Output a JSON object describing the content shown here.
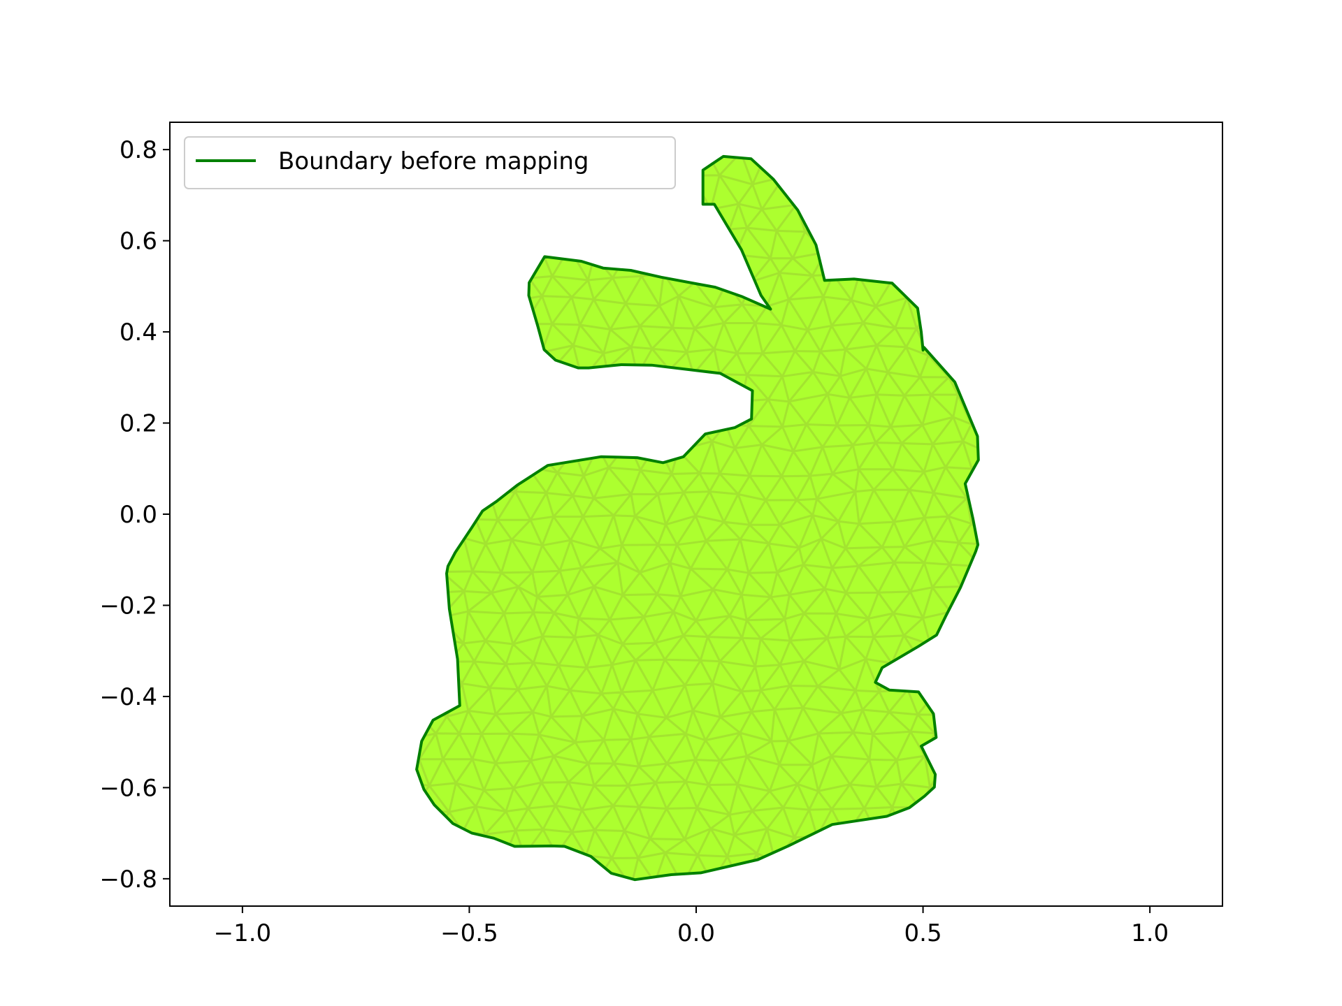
{
  "chart_data": {
    "type": "line",
    "title": "",
    "xlabel": "",
    "ylabel": "",
    "xlim": [
      -1.16,
      1.16
    ],
    "ylim": [
      -0.86,
      0.86
    ],
    "grid": false,
    "legend_position": "top-left",
    "x_ticks": [
      -1.0,
      -0.5,
      0.0,
      0.5,
      1.0
    ],
    "x_tick_labels": [
      "−1.0",
      "−0.5",
      "0.0",
      "0.5",
      "1.0"
    ],
    "y_ticks": [
      0.8,
      0.6,
      0.4,
      0.2,
      0.0,
      -0.2,
      -0.4,
      -0.6,
      -0.8
    ],
    "y_tick_labels": [
      "0.8",
      "0.6",
      "0.4",
      "0.2",
      "0.0",
      "−0.2",
      "−0.4",
      "−0.6",
      "−0.8"
    ],
    "series": [
      {
        "name": "Boundary before mapping",
        "color": "#008000",
        "fill_color": "#ADFF2F",
        "x": [
          0.164,
          0.143,
          0.1,
          0.04,
          0.015,
          0.015,
          0.06,
          0.121,
          0.17,
          0.224,
          0.264,
          0.283,
          0.348,
          0.432,
          0.488,
          0.496,
          0.5,
          0.502,
          0.57,
          0.62,
          0.622,
          0.593,
          0.61,
          0.621,
          0.616,
          0.583,
          0.55,
          0.53,
          0.49,
          0.41,
          0.395,
          0.426,
          0.49,
          0.523,
          0.529,
          0.496,
          0.527,
          0.525,
          0.503,
          0.47,
          0.42,
          0.3,
          0.203,
          0.136,
          0.01,
          -0.055,
          -0.135,
          -0.187,
          -0.232,
          -0.29,
          -0.318,
          -0.4,
          -0.446,
          -0.494,
          -0.536,
          -0.577,
          -0.6,
          -0.616,
          -0.605,
          -0.58,
          -0.521,
          -0.526,
          -0.544,
          -0.55,
          -0.547,
          -0.531,
          -0.495,
          -0.471,
          -0.44,
          -0.394,
          -0.327,
          -0.21,
          -0.13,
          -0.073,
          -0.028,
          0.02,
          0.085,
          0.122,
          0.124,
          0.053,
          -0.098,
          -0.165,
          -0.237,
          -0.26,
          -0.31,
          -0.335,
          -0.349,
          -0.369,
          -0.368,
          -0.334,
          -0.253,
          -0.205,
          -0.144,
          -0.077,
          0.004,
          0.042,
          0.102
        ],
        "y": [
          0.45,
          0.48,
          0.58,
          0.68,
          0.68,
          0.755,
          0.785,
          0.78,
          0.735,
          0.667,
          0.591,
          0.513,
          0.516,
          0.507,
          0.452,
          0.4,
          0.36,
          0.366,
          0.29,
          0.171,
          0.119,
          0.067,
          -0.01,
          -0.067,
          -0.082,
          -0.16,
          -0.224,
          -0.265,
          -0.29,
          -0.337,
          -0.369,
          -0.386,
          -0.39,
          -0.438,
          -0.49,
          -0.509,
          -0.571,
          -0.599,
          -0.619,
          -0.644,
          -0.663,
          -0.681,
          -0.728,
          -0.758,
          -0.787,
          -0.791,
          -0.802,
          -0.788,
          -0.751,
          -0.729,
          -0.728,
          -0.729,
          -0.711,
          -0.7,
          -0.679,
          -0.638,
          -0.604,
          -0.56,
          -0.498,
          -0.452,
          -0.42,
          -0.318,
          -0.208,
          -0.13,
          -0.114,
          -0.084,
          -0.03,
          0.007,
          0.028,
          0.064,
          0.107,
          0.126,
          0.124,
          0.113,
          0.126,
          0.176,
          0.19,
          0.209,
          0.271,
          0.309,
          0.327,
          0.328,
          0.321,
          0.321,
          0.338,
          0.361,
          0.412,
          0.48,
          0.508,
          0.565,
          0.555,
          0.54,
          0.535,
          0.52,
          0.505,
          0.498,
          0.477
        ]
      }
    ]
  }
}
